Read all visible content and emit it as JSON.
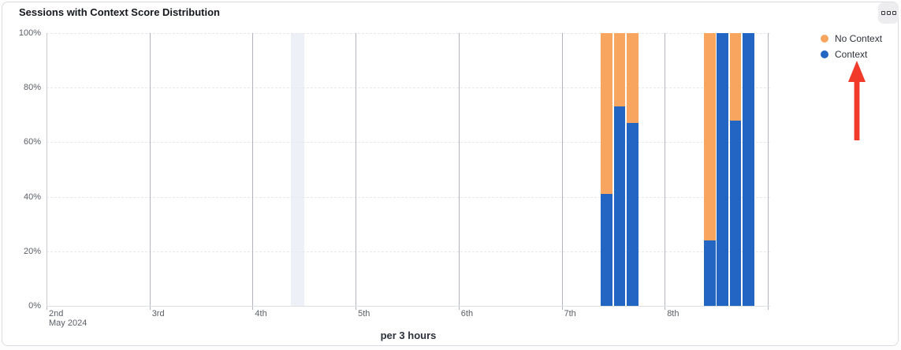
{
  "card": {
    "title": "Sessions with Context Score Distribution",
    "more_options_icon": "three-squares-menu"
  },
  "chart_data": {
    "type": "bar",
    "stacked": true,
    "unit": "percent",
    "title": "Sessions with Context Score Distribution",
    "xlabel": "per 3 hours",
    "ylabel": "",
    "ylim": [
      0,
      100
    ],
    "y_ticks": [
      "100%",
      "80%",
      "60%",
      "40%",
      "20%",
      "0%"
    ],
    "x_axis": {
      "tick_labels": [
        "2nd",
        "3rd",
        "4th",
        "5th",
        "6th",
        "7th",
        "8th"
      ],
      "first_tick_sub_label": "May 2024",
      "bucket": "3 hours",
      "buckets_per_day": 8
    },
    "legend": [
      {
        "label": "No Context",
        "color": "#f8a65f"
      },
      {
        "label": "Context",
        "color": "#2265c3"
      }
    ],
    "series_colors": {
      "context": "#2265c3",
      "no_context": "#f8a65f"
    },
    "bars": [
      {
        "day": "7th",
        "slot": 3,
        "time": "09:00",
        "context": 41,
        "no_context": 59
      },
      {
        "day": "7th",
        "slot": 4,
        "time": "12:00",
        "context": 73,
        "no_context": 27
      },
      {
        "day": "7th",
        "slot": 5,
        "time": "15:00",
        "context": 67,
        "no_context": 33
      },
      {
        "day": "8th",
        "slot": 3,
        "time": "09:00",
        "context": 24,
        "no_context": 76
      },
      {
        "day": "8th",
        "slot": 4,
        "time": "12:00",
        "context": 100,
        "no_context": 0
      },
      {
        "day": "8th",
        "slot": 5,
        "time": "15:00",
        "context": 68,
        "no_context": 32
      },
      {
        "day": "8th",
        "slot": 6,
        "time": "18:00",
        "context": 100,
        "no_context": 0
      }
    ],
    "highlight_band": {
      "day": "4th",
      "slot": 3,
      "color": "#edf1f7"
    },
    "grid": {
      "horizontal": "dashed",
      "vertical": "solid-per-day"
    }
  },
  "annotations": {
    "red_arrow": {
      "points_to": "Context legend item",
      "direction": "up",
      "color": "#f23a2b"
    }
  }
}
